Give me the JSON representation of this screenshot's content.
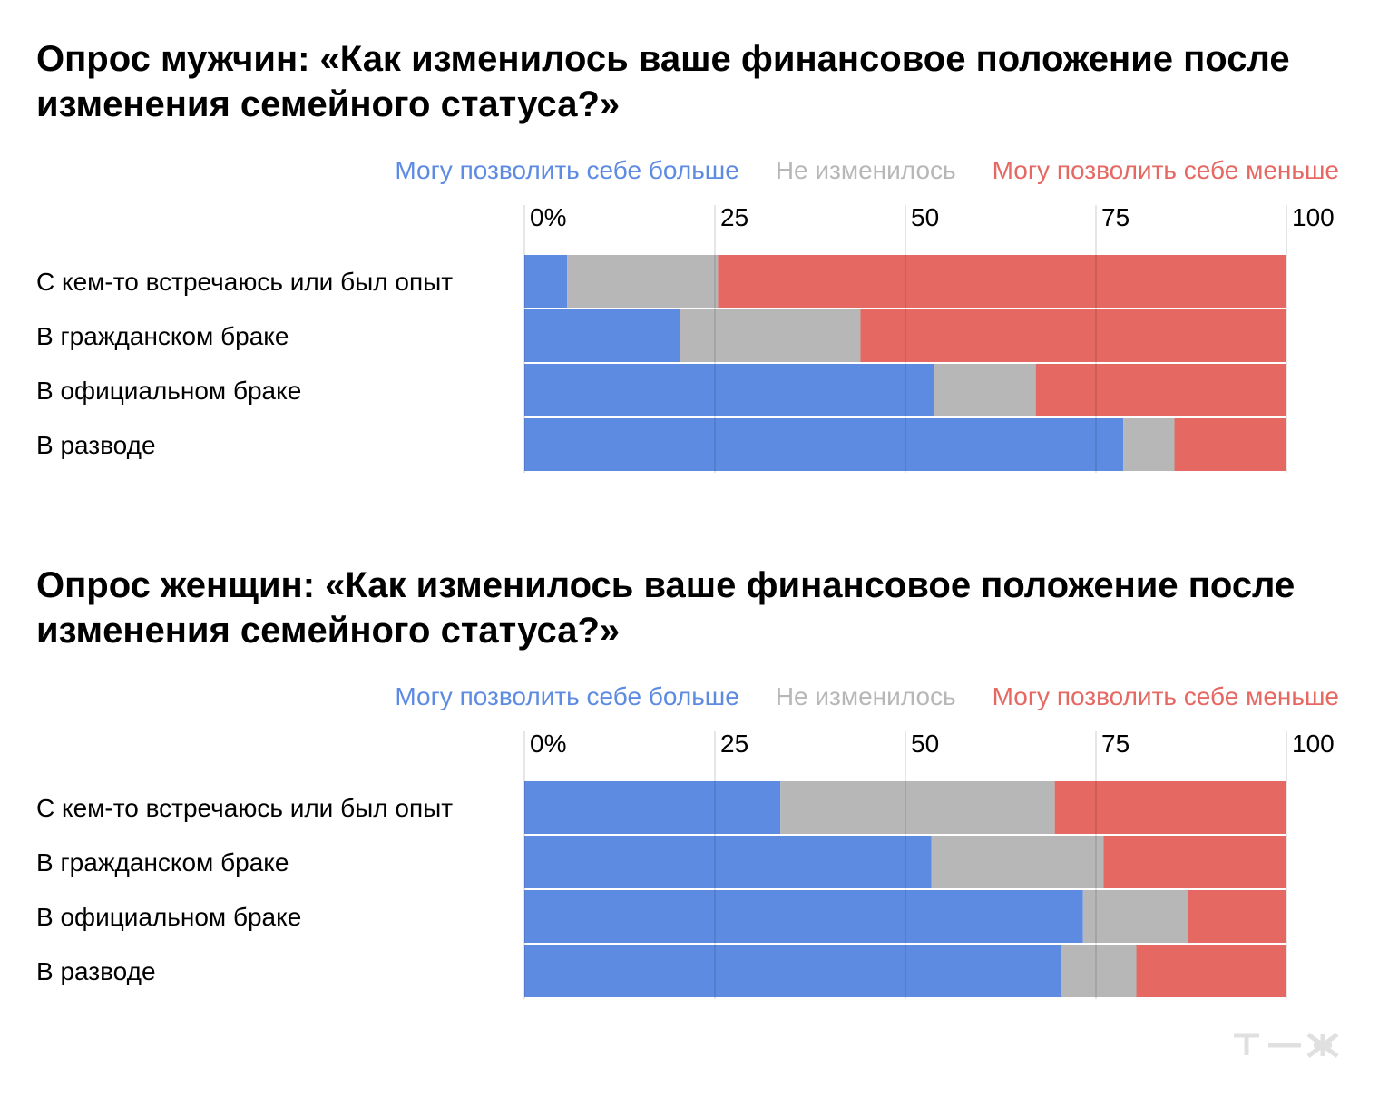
{
  "colors": {
    "more": "#5e8be2",
    "same": "#b7b7b7",
    "less": "#e66862",
    "grid": "#d9d9d9"
  },
  "logo": {
    "text": "т—ж",
    "color": "#e0e0e0"
  },
  "chart_data": [
    {
      "type": "bar",
      "orientation": "horizontal",
      "stacked": true,
      "title": "Опрос мужчин: «Как изменилось ваше финансовое положение после изменения семейного статуса?»",
      "categories": [
        "С кем-то встречаюсь или был опыт",
        "В гражданском браке",
        "В официальном браке",
        "В разводе"
      ],
      "ticks": [
        "0%",
        "25",
        "50",
        "75",
        "100"
      ],
      "tick_values": [
        0,
        25,
        50,
        75,
        100
      ],
      "xlim": [
        0,
        100
      ],
      "grid": true,
      "legend_position": "top-right",
      "series": [
        {
          "name": "Могу позволить себе больше",
          "color_key": "more",
          "values": [
            5.6,
            20.4,
            53.8,
            78.6
          ]
        },
        {
          "name": "Не изменилось",
          "color_key": "same",
          "values": [
            19.8,
            23.7,
            13.3,
            6.7
          ]
        },
        {
          "name": "Могу позволить себе меньше",
          "color_key": "less",
          "values": [
            74.6,
            55.9,
            32.9,
            14.7
          ]
        }
      ]
    },
    {
      "type": "bar",
      "orientation": "horizontal",
      "stacked": true,
      "title": "Опрос женщин: «Как изменилось ваше финансовое положение после изменения семейного статуса?»",
      "categories": [
        "С кем-то встречаюсь или был опыт",
        "В гражданском браке",
        "В официальном браке",
        "В разводе"
      ],
      "ticks": [
        "0%",
        "25",
        "50",
        "75",
        "100"
      ],
      "tick_values": [
        0,
        25,
        50,
        75,
        100
      ],
      "xlim": [
        0,
        100
      ],
      "grid": true,
      "legend_position": "top-right",
      "series": [
        {
          "name": "Могу позволить себе больше",
          "color_key": "more",
          "values": [
            33.6,
            53.4,
            73.3,
            70.4
          ]
        },
        {
          "name": "Не изменилось",
          "color_key": "same",
          "values": [
            36.0,
            22.6,
            13.7,
            9.9
          ]
        },
        {
          "name": "Могу позволить себе меньше",
          "color_key": "less",
          "values": [
            30.4,
            24.0,
            13.0,
            19.7
          ]
        }
      ]
    }
  ]
}
